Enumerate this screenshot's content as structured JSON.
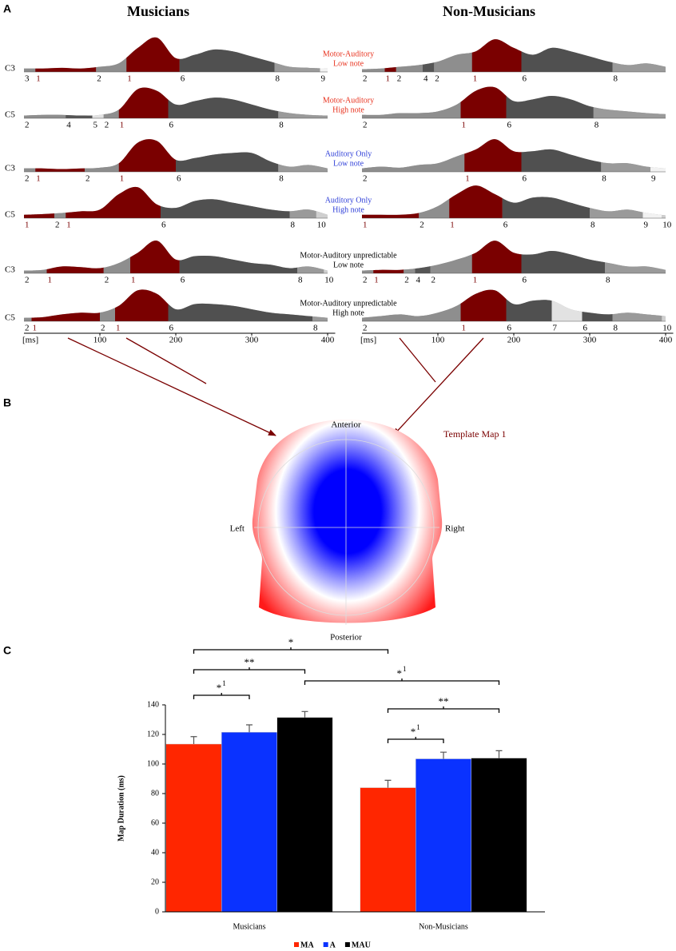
{
  "panel_labels": [
    "A",
    "B",
    "C"
  ],
  "panel_a": {
    "group_titles": [
      "Musicians",
      "Non-Musicians"
    ],
    "conditions": [
      {
        "lines": [
          "Motor-Auditory",
          "Low note"
        ],
        "color": "#e8321e"
      },
      {
        "lines": [
          "Motor-Auditory",
          "High note"
        ],
        "color": "#e8321e"
      },
      {
        "lines": [
          "Auditory Only",
          "Low note"
        ],
        "color": "#2f3fd8"
      },
      {
        "lines": [
          "Auditory Only",
          "High note"
        ],
        "color": "#2f3fd8"
      },
      {
        "lines": [
          "Motor-Auditory unpredictable",
          "Low note"
        ],
        "color": "#000000"
      },
      {
        "lines": [
          "Motor-Auditory unpredictable",
          "High note"
        ],
        "color": "#000000"
      }
    ],
    "electrodes": [
      "C3",
      "C5",
      "C3",
      "C5",
      "C3",
      "C5"
    ],
    "map_colors": {
      "1": {
        "fill": "#7a0000",
        "text": "#7a0000"
      },
      "2": {
        "fill": "#8e8e8e",
        "text": "#000000"
      },
      "3": {
        "fill": "#8e8e8e",
        "text": "#000000"
      },
      "4": {
        "fill": "#555555",
        "text": "#000000"
      },
      "5": {
        "fill": "#e2e2e2",
        "text": "#000000"
      },
      "6": {
        "fill": "#505050",
        "text": "#000000"
      },
      "7": {
        "fill": "#e2e2e2",
        "text": "#000000"
      },
      "8": {
        "fill": "#9a9a9a",
        "text": "#000000"
      },
      "9": {
        "fill": "#f2f2f2",
        "text": "#000000"
      },
      "10": {
        "fill": "#cfcfcf",
        "text": "#000000"
      }
    },
    "x_label": "[ms]",
    "xlim": [
      0,
      410
    ],
    "xticks": [
      100,
      200,
      300,
      400
    ],
    "gfp_times": [
      0,
      25,
      50,
      75,
      100,
      125,
      150,
      175,
      200,
      225,
      250,
      275,
      300,
      325,
      350,
      375,
      400
    ],
    "traces": [
      [
        {
          "gfp": [
            1,
            1,
            1.2,
            1,
            1.5,
            2.5,
            7,
            10,
            4,
            5,
            6.5,
            6,
            4.5,
            3,
            1.5,
            1.2,
            1
          ],
          "segments": [
            {
              "map": "3",
              "start": 0
            },
            {
              "map": "1",
              "start": 15
            },
            {
              "map": "2",
              "start": 95
            },
            {
              "map": "1",
              "start": 135
            },
            {
              "map": "6",
              "start": 205
            },
            {
              "map": "8",
              "start": 330
            },
            {
              "map": "9",
              "start": 390
            }
          ]
        },
        {
          "gfp": [
            0.8,
            1,
            1,
            0.8,
            1,
            2.5,
            8.5,
            8,
            4,
            5,
            6,
            5.5,
            4,
            2.5,
            1.5,
            1,
            0.8
          ],
          "segments": [
            {
              "map": "2",
              "start": 0
            },
            {
              "map": "4",
              "start": 55
            },
            {
              "map": "5",
              "start": 90
            },
            {
              "map": "2",
              "start": 105
            },
            {
              "map": "1",
              "start": 125
            },
            {
              "map": "6",
              "start": 190
            },
            {
              "map": "8",
              "start": 335
            }
          ]
        },
        {
          "gfp": [
            1,
            1,
            0.8,
            1,
            1.2,
            2.5,
            8.5,
            9,
            3.5,
            4,
            5,
            5.5,
            5.5,
            3,
            1.5,
            2,
            1
          ],
          "segments": [
            {
              "map": "2",
              "start": 0
            },
            {
              "map": "1",
              "start": 15
            },
            {
              "map": "2",
              "start": 80
            },
            {
              "map": "1",
              "start": 125
            },
            {
              "map": "6",
              "start": 200
            },
            {
              "map": "8",
              "start": 335
            }
          ]
        },
        {
          "gfp": [
            1,
            1.2,
            1.5,
            2,
            2.5,
            7,
            9,
            4,
            3,
            5,
            5.5,
            4.5,
            3.5,
            2.5,
            2,
            2.5,
            1
          ],
          "segments": [
            {
              "map": "1",
              "start": 0
            },
            {
              "map": "2",
              "start": 40
            },
            {
              "map": "1",
              "start": 55
            },
            {
              "map": "6",
              "start": 180
            },
            {
              "map": "8",
              "start": 350
            },
            {
              "map": "10",
              "start": 385
            }
          ]
        },
        {
          "gfp": [
            0.8,
            1,
            2,
            1.8,
            1.5,
            3,
            6,
            9.5,
            4,
            5,
            5,
            4,
            3,
            2.5,
            1.5,
            2,
            0.8
          ],
          "segments": [
            {
              "map": "2",
              "start": 0
            },
            {
              "map": "1",
              "start": 30
            },
            {
              "map": "2",
              "start": 105
            },
            {
              "map": "1",
              "start": 140
            },
            {
              "map": "6",
              "start": 205
            },
            {
              "map": "8",
              "start": 360
            },
            {
              "map": "10",
              "start": 395
            }
          ]
        },
        {
          "gfp": [
            1,
            1.2,
            2,
            2.5,
            2.5,
            4.5,
            9,
            8,
            3.5,
            5,
            5,
            4.5,
            3.5,
            2.5,
            2,
            1.5,
            1
          ],
          "segments": [
            {
              "map": "2",
              "start": 0
            },
            {
              "map": "1",
              "start": 10
            },
            {
              "map": "2",
              "start": 100
            },
            {
              "map": "1",
              "start": 120
            },
            {
              "map": "6",
              "start": 190
            },
            {
              "map": "8",
              "start": 380
            }
          ]
        }
      ],
      [
        {
          "gfp": [
            0.8,
            1,
            1.5,
            2,
            3,
            5,
            6,
            9.5,
            7,
            5,
            7,
            6,
            4.5,
            3,
            2,
            2.5,
            1.5
          ],
          "segments": [
            {
              "map": "2",
              "start": 0
            },
            {
              "map": "1",
              "start": 30
            },
            {
              "map": "2",
              "start": 45
            },
            {
              "map": "4",
              "start": 80
            },
            {
              "map": "2",
              "start": 95
            },
            {
              "map": "1",
              "start": 145
            },
            {
              "map": "6",
              "start": 210
            },
            {
              "map": "8",
              "start": 330
            }
          ]
        },
        {
          "gfp": [
            1,
            1,
            1.5,
            1.5,
            2,
            4,
            8,
            9,
            5,
            5.5,
            6.5,
            5.5,
            3.5,
            2.5,
            2,
            1.5,
            1.2
          ],
          "segments": [
            {
              "map": "2",
              "start": 0
            },
            {
              "map": "1",
              "start": 130
            },
            {
              "map": "6",
              "start": 190
            },
            {
              "map": "8",
              "start": 305
            }
          ]
        },
        {
          "gfp": [
            1,
            1.5,
            1.2,
            2,
            2.5,
            4.5,
            6.5,
            9.5,
            6,
            6,
            6.5,
            5,
            3.5,
            2.5,
            2.5,
            1.5,
            1
          ],
          "segments": [
            {
              "map": "2",
              "start": 0
            },
            {
              "map": "1",
              "start": 135
            },
            {
              "map": "6",
              "start": 210
            },
            {
              "map": "8",
              "start": 315
            },
            {
              "map": "9",
              "start": 380
            }
          ]
        },
        {
          "gfp": [
            1,
            1,
            1,
            1.5,
            3.5,
            7,
            9.5,
            7,
            4.5,
            6,
            6,
            4.5,
            3,
            2,
            2.5,
            1.5,
            0.8
          ],
          "segments": [
            {
              "map": "1",
              "start": 0
            },
            {
              "map": "2",
              "start": 75
            },
            {
              "map": "1",
              "start": 115
            },
            {
              "map": "6",
              "start": 185
            },
            {
              "map": "8",
              "start": 300
            },
            {
              "map": "9",
              "start": 370
            },
            {
              "map": "10",
              "start": 395
            }
          ]
        },
        {
          "gfp": [
            0.8,
            1,
            1,
            1.5,
            2.5,
            4,
            6,
            9.5,
            6,
            5.5,
            6.5,
            5.5,
            4,
            3,
            2,
            2,
            1
          ],
          "segments": [
            {
              "map": "2",
              "start": 0
            },
            {
              "map": "1",
              "start": 15
            },
            {
              "map": "2",
              "start": 55
            },
            {
              "map": "4",
              "start": 70
            },
            {
              "map": "2",
              "start": 90
            },
            {
              "map": "1",
              "start": 145
            },
            {
              "map": "6",
              "start": 210
            },
            {
              "map": "8",
              "start": 320
            }
          ]
        },
        {
          "gfp": [
            1,
            1.5,
            2,
            1.5,
            2.5,
            4.5,
            8,
            9,
            5,
            6,
            6,
            3.5,
            2.5,
            2,
            2.5,
            2,
            1.5
          ],
          "segments": [
            {
              "map": "2",
              "start": 0
            },
            {
              "map": "1",
              "start": 130
            },
            {
              "map": "6",
              "start": 190
            },
            {
              "map": "7",
              "start": 250
            },
            {
              "map": "6",
              "start": 290
            },
            {
              "map": "8",
              "start": 330
            },
            {
              "map": "10",
              "start": 395
            }
          ]
        }
      ]
    ]
  },
  "panel_b": {
    "title": "Template Map 1",
    "anterior": "Anterior",
    "posterior": "Posterior",
    "left": "Left",
    "right": "Right"
  },
  "chart_data": {
    "type": "bar",
    "y_label": "Map Duration (ms)",
    "categories": [
      "Musicians",
      "Non-Musicians"
    ],
    "series": [
      {
        "name": "MA",
        "color": "#ff2600",
        "values": [
          113.5,
          84
        ],
        "errors": [
          5,
          5
        ]
      },
      {
        "name": "A",
        "color": "#0a32ff",
        "values": [
          121.5,
          103.5
        ],
        "errors": [
          5,
          4.5
        ]
      },
      {
        "name": "MAU",
        "color": "#000000",
        "values": [
          131.5,
          104
        ],
        "errors": [
          4,
          5
        ]
      }
    ],
    "ylim": [
      0,
      140
    ],
    "yticks": [
      0,
      20,
      40,
      60,
      80,
      100,
      120,
      140
    ],
    "legend": "bottom",
    "annotations": [
      {
        "text": "*"
      },
      {
        "text": "**"
      },
      {
        "text": "*",
        "sup": "1"
      },
      {
        "text": "*",
        "sup": "1"
      },
      {
        "text": "**"
      },
      {
        "text": "*",
        "sup": "1"
      }
    ]
  }
}
